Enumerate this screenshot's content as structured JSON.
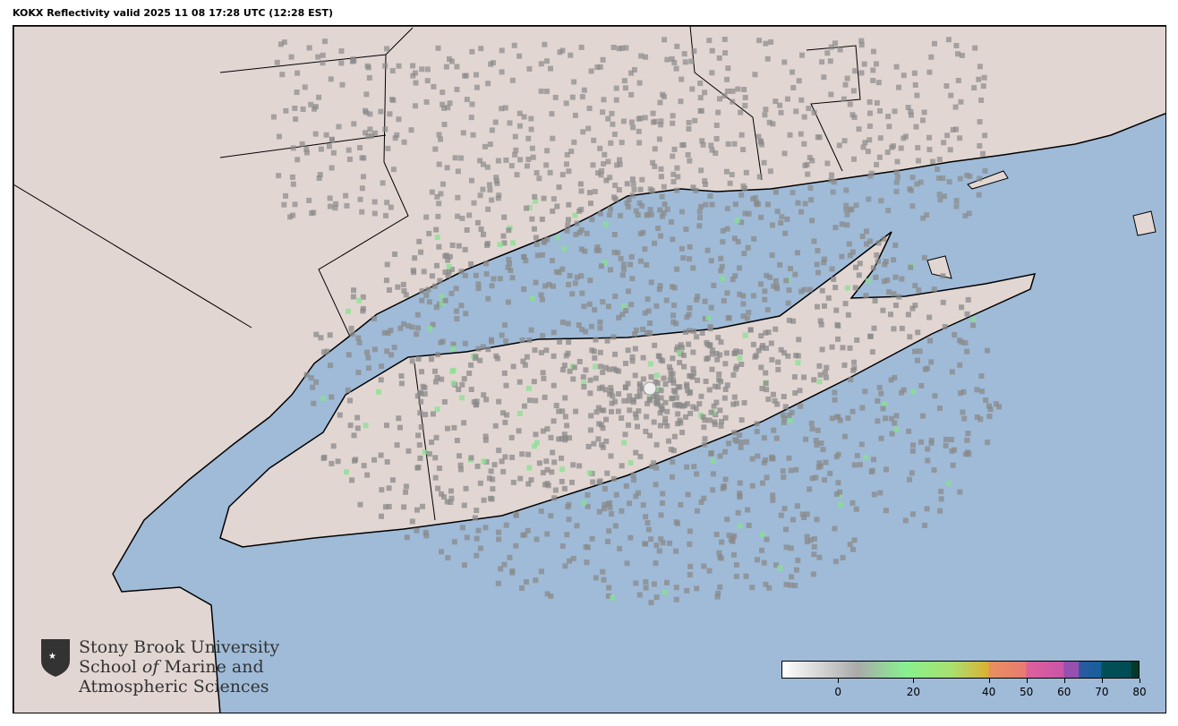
{
  "title": "KOKX Reflectivity valid 2025 11 08 17:28 UTC (12:28 EST)",
  "colors": {
    "water": "#9fbbd8",
    "land": "#e2d6d3",
    "border": "#000000"
  },
  "colorbar": {
    "min": -15,
    "max": 80,
    "ticks": [
      0,
      20,
      40,
      50,
      60,
      70,
      80
    ],
    "tick_labels": [
      "0",
      "20",
      "40",
      "50",
      "60",
      "70",
      "80"
    ],
    "stops": [
      {
        "v": -15,
        "c": "#ffffff"
      },
      {
        "v": 5,
        "c": "#aaaaaa"
      },
      {
        "v": 18,
        "c": "#88f08f"
      },
      {
        "v": 30,
        "c": "#a8e070"
      },
      {
        "v": 40,
        "c": "#dcb032"
      },
      {
        "v": 40.1,
        "c": "#e8905e"
      },
      {
        "v": 50,
        "c": "#e87a70"
      },
      {
        "v": 50.1,
        "c": "#e0609a"
      },
      {
        "v": 60,
        "c": "#c855a8"
      },
      {
        "v": 60.1,
        "c": "#9650b0"
      },
      {
        "v": 64,
        "c": "#9650b0"
      },
      {
        "v": 64.1,
        "c": "#2f58a0"
      },
      {
        "v": 70,
        "c": "#14609a"
      },
      {
        "v": 70.1,
        "c": "#005058"
      },
      {
        "v": 78,
        "c": "#004c55"
      },
      {
        "v": 78.1,
        "c": "#003a2a"
      },
      {
        "v": 80,
        "c": "#003a2a"
      }
    ]
  },
  "logo": {
    "line1": "Stony Brook University",
    "line2_a": "School ",
    "line2_b": "of",
    "line2_c": " Marine and",
    "line3": "Atmospheric Sciences"
  }
}
